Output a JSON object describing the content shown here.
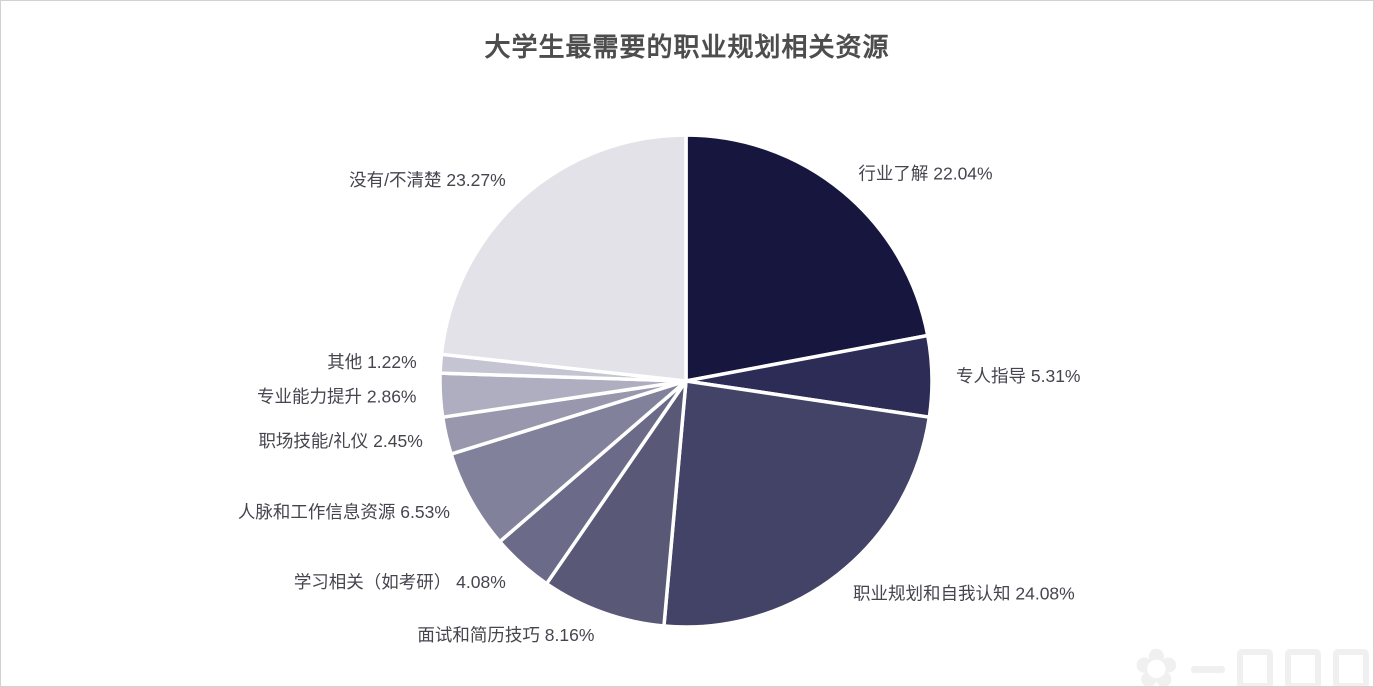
{
  "page": {
    "background": "#ffffff",
    "border_color": "#d2d2d2"
  },
  "chart_data": {
    "type": "pie",
    "title": "大学生最需要的职业规划相关资源",
    "title_color": "#4d4d4d",
    "label_color": "#45454f",
    "slice_border_color": "#ffffff",
    "start_angle_deg": 0,
    "direction": "clockwise",
    "legend_position": "none",
    "grid": false,
    "slices": [
      {
        "label": "行业了解",
        "value": 22.04,
        "display": "行业了解 22.04%",
        "color": "#17163E"
      },
      {
        "label": "专人指导",
        "value": 5.31,
        "display": "专人指导 5.31%",
        "color": "#2D2C56"
      },
      {
        "label": "职业规划和自我认知",
        "value": 24.08,
        "display": "职业规划和自我认知 24.08%",
        "color": "#434267"
      },
      {
        "label": "面试和简历技巧",
        "value": 8.16,
        "display": "面试和简历技巧 8.16%",
        "color": "#595877"
      },
      {
        "label": "学习相关（如考研）",
        "value": 4.08,
        "display": "学习相关（如考研） 4.08%",
        "color": "#6B6A88"
      },
      {
        "label": "人脉和工作信息资源",
        "value": 6.53,
        "display": "人脉和工作信息资源 6.53%",
        "color": "#82819B"
      },
      {
        "label": "职场技能/礼仪",
        "value": 2.45,
        "display": "职场技能/礼仪 2.45%",
        "color": "#9897AD"
      },
      {
        "label": "专业能力提升",
        "value": 2.86,
        "display": "专业能力提升 2.86%",
        "color": "#AFAEC0"
      },
      {
        "label": "其他",
        "value": 1.22,
        "display": "其他 1.22%",
        "color": "#C5C4D2"
      },
      {
        "label": "没有/不清楚",
        "value": 23.27,
        "display": "没有/不清楚 23.27%",
        "color": "#E2E2E8"
      }
    ]
  },
  "watermark": {
    "flower_glyph": "✿"
  }
}
